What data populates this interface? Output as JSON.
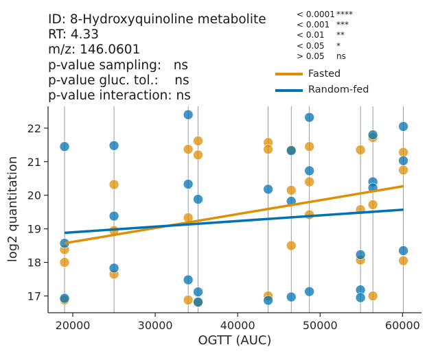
{
  "header": {
    "line1": "ID: 8-Hydroxyquinoline metabolite",
    "line2": "RT: 4.33",
    "line3": "m/z: 146.0601",
    "line4": "p-value sampling:   ns",
    "line5": "p-value gluc. tol.:    ns",
    "line6": "p-value interaction: ns"
  },
  "significance_key": [
    {
      "threshold": "< 0.0001",
      "code": "****"
    },
    {
      "threshold": "< 0.001",
      "code": "***"
    },
    {
      "threshold": "< 0.01",
      "code": "**"
    },
    {
      "threshold": "< 0.05",
      "code": "*"
    },
    {
      "threshold": "> 0.05",
      "code": "ns"
    }
  ],
  "chart_data": {
    "type": "scatter",
    "xlabel": "OGTT (AUC)",
    "ylabel": "log2 quantitation",
    "xlim": [
      17000,
      62300
    ],
    "ylim": [
      16.5,
      22.65
    ],
    "xticks": [
      20000,
      30000,
      40000,
      50000,
      60000
    ],
    "yticks": [
      17,
      18,
      19,
      20,
      21,
      22
    ],
    "vertical_guides": [
      19000,
      25000,
      34000,
      35200,
      43700,
      46500,
      48700,
      54900,
      56400,
      60100
    ],
    "legend_position": "top-right",
    "series": [
      {
        "name": "Fasted",
        "color": "#de8f05",
        "points": [
          [
            19000,
            18.38
          ],
          [
            19000,
            18.0
          ],
          [
            19000,
            16.88
          ],
          [
            25000,
            20.32
          ],
          [
            25000,
            18.95
          ],
          [
            25000,
            17.65
          ],
          [
            34000,
            21.37
          ],
          [
            34000,
            19.33
          ],
          [
            34000,
            16.88
          ],
          [
            35200,
            21.62
          ],
          [
            35200,
            21.2
          ],
          [
            35200,
            16.8
          ],
          [
            43700,
            21.57
          ],
          [
            43700,
            21.37
          ],
          [
            43700,
            17.0
          ],
          [
            46500,
            21.35
          ],
          [
            46500,
            20.15
          ],
          [
            46500,
            18.5
          ],
          [
            48700,
            21.45
          ],
          [
            48700,
            20.4
          ],
          [
            48700,
            19.42
          ],
          [
            54900,
            21.35
          ],
          [
            54900,
            19.57
          ],
          [
            54900,
            18.07
          ],
          [
            56400,
            21.72
          ],
          [
            56400,
            19.72
          ],
          [
            56400,
            17.0
          ],
          [
            60100,
            21.28
          ],
          [
            60100,
            20.75
          ],
          [
            60100,
            18.05
          ]
        ],
        "trend": [
          [
            19000,
            18.57
          ],
          [
            60100,
            20.27
          ]
        ]
      },
      {
        "name": "Random-fed",
        "color": "#0173b2",
        "points": [
          [
            19000,
            21.45
          ],
          [
            19000,
            18.57
          ],
          [
            19000,
            16.93
          ],
          [
            25000,
            21.48
          ],
          [
            25000,
            19.38
          ],
          [
            25000,
            17.83
          ],
          [
            34000,
            22.4
          ],
          [
            34000,
            20.33
          ],
          [
            34000,
            17.48
          ],
          [
            35200,
            19.88
          ],
          [
            35200,
            17.12
          ],
          [
            35200,
            16.82
          ],
          [
            43700,
            20.18
          ],
          [
            43700,
            16.87
          ],
          [
            46500,
            21.33
          ],
          [
            46500,
            19.82
          ],
          [
            46500,
            16.97
          ],
          [
            48700,
            22.32
          ],
          [
            48700,
            20.73
          ],
          [
            48700,
            17.13
          ],
          [
            54900,
            18.23
          ],
          [
            54900,
            17.18
          ],
          [
            54900,
            16.95
          ],
          [
            56400,
            21.8
          ],
          [
            56400,
            20.4
          ],
          [
            56400,
            20.22
          ],
          [
            60100,
            22.05
          ],
          [
            60100,
            21.03
          ],
          [
            60100,
            18.35
          ]
        ],
        "trend": [
          [
            19000,
            18.88
          ],
          [
            60100,
            19.57
          ]
        ]
      }
    ]
  }
}
